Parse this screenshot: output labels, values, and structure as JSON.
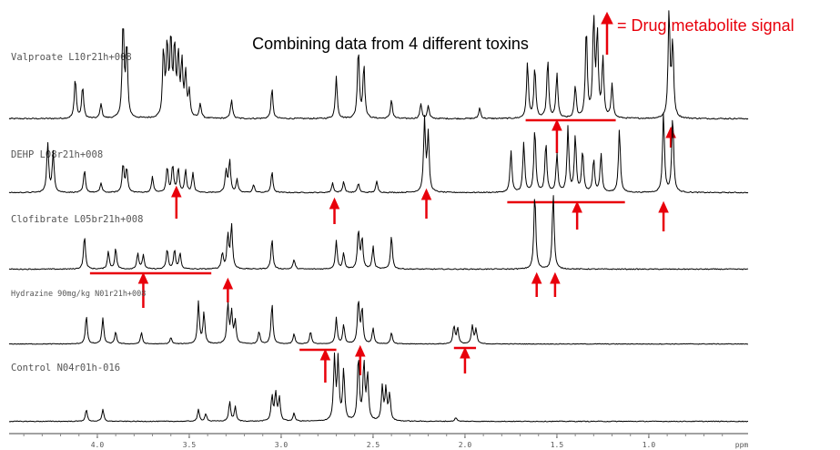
{
  "chart_data": {
    "type": "line",
    "title": "Combining data from 4 different toxins",
    "legend": {
      "symbol": "red-up-arrow-icon",
      "text": "= Drug metabolite signal",
      "placement": "top-right"
    },
    "x": {
      "unit_label": "ppm",
      "reversed": true,
      "range": [
        4.48,
        0.46
      ],
      "ticks": [
        {
          "value": 4.0,
          "label": "4.0"
        },
        {
          "value": 3.5,
          "label": "3.5"
        },
        {
          "value": 3.0,
          "label": "3.0"
        },
        {
          "value": 2.5,
          "label": "2.5"
        },
        {
          "value": 2.0,
          "label": "2.0"
        },
        {
          "value": 1.5,
          "label": "1.5"
        },
        {
          "value": 1.0,
          "label": "1.0"
        }
      ]
    },
    "colors": {
      "marker": "#e8000b",
      "trace": "#000000"
    },
    "series": [
      {
        "name": "Valproate L10r21h+008",
        "peaks": [
          [
            4.12,
            0.38
          ],
          [
            4.08,
            0.3
          ],
          [
            3.98,
            0.14
          ],
          [
            3.86,
            0.9
          ],
          [
            3.84,
            0.68
          ],
          [
            3.64,
            0.62
          ],
          [
            3.62,
            0.66
          ],
          [
            3.6,
            0.72
          ],
          [
            3.58,
            0.64
          ],
          [
            3.56,
            0.56
          ],
          [
            3.54,
            0.5
          ],
          [
            3.52,
            0.4
          ],
          [
            3.5,
            0.24
          ],
          [
            3.44,
            0.14
          ],
          [
            3.27,
            0.18
          ],
          [
            3.05,
            0.28
          ],
          [
            2.7,
            0.4
          ],
          [
            2.58,
            0.65
          ],
          [
            2.55,
            0.5
          ],
          [
            2.4,
            0.18
          ],
          [
            2.24,
            0.14
          ],
          [
            2.2,
            0.12
          ],
          [
            1.92,
            0.1
          ],
          [
            1.66,
            0.52
          ],
          [
            1.62,
            0.48
          ],
          [
            1.55,
            0.55
          ],
          [
            1.5,
            0.42
          ],
          [
            1.4,
            0.3
          ],
          [
            1.34,
            0.85
          ],
          [
            1.3,
            0.92
          ],
          [
            1.28,
            0.78
          ],
          [
            1.25,
            0.55
          ],
          [
            1.2,
            0.32
          ],
          [
            0.89,
            1.0
          ],
          [
            0.87,
            0.7
          ]
        ],
        "markers": [
          {
            "x": 1.5,
            "span": [
              1.67,
              1.18
            ]
          },
          {
            "x": 0.88
          }
        ]
      },
      {
        "name": "DEHP L08r21h+008",
        "peaks": [
          [
            4.27,
            0.62
          ],
          [
            4.24,
            0.5
          ],
          [
            4.07,
            0.28
          ],
          [
            3.98,
            0.12
          ],
          [
            3.86,
            0.36
          ],
          [
            3.84,
            0.3
          ],
          [
            3.7,
            0.2
          ],
          [
            3.62,
            0.32
          ],
          [
            3.59,
            0.34
          ],
          [
            3.56,
            0.3
          ],
          [
            3.52,
            0.28
          ],
          [
            3.48,
            0.24
          ],
          [
            3.3,
            0.28
          ],
          [
            3.28,
            0.4
          ],
          [
            3.24,
            0.16
          ],
          [
            3.15,
            0.1
          ],
          [
            3.05,
            0.26
          ],
          [
            2.72,
            0.12
          ],
          [
            2.66,
            0.14
          ],
          [
            2.58,
            0.12
          ],
          [
            2.48,
            0.14
          ],
          [
            2.22,
            0.9
          ],
          [
            2.2,
            0.72
          ],
          [
            1.75,
            0.52
          ],
          [
            1.68,
            0.62
          ],
          [
            1.62,
            0.8
          ],
          [
            1.56,
            0.62
          ],
          [
            1.5,
            0.48
          ],
          [
            1.44,
            0.82
          ],
          [
            1.4,
            0.7
          ],
          [
            1.36,
            0.52
          ],
          [
            1.3,
            0.42
          ],
          [
            1.26,
            0.48
          ],
          [
            1.16,
            0.8
          ],
          [
            0.92,
            1.0
          ],
          [
            0.87,
            0.96
          ]
        ],
        "markers": [
          {
            "x": 3.57
          },
          {
            "x": 2.71
          },
          {
            "x": 2.21
          },
          {
            "x": 1.39,
            "span": [
              1.77,
              1.13
            ]
          },
          {
            "x": 0.92
          }
        ]
      },
      {
        "name": "Clofibrate L05br21h+008",
        "peaks": [
          [
            4.07,
            0.42
          ],
          [
            3.94,
            0.22
          ],
          [
            3.9,
            0.26
          ],
          [
            3.78,
            0.2
          ],
          [
            3.75,
            0.18
          ],
          [
            3.62,
            0.25
          ],
          [
            3.58,
            0.24
          ],
          [
            3.55,
            0.2
          ],
          [
            3.32,
            0.2
          ],
          [
            3.29,
            0.42
          ],
          [
            3.27,
            0.55
          ],
          [
            3.05,
            0.38
          ],
          [
            2.93,
            0.12
          ],
          [
            2.7,
            0.36
          ],
          [
            2.66,
            0.2
          ],
          [
            2.58,
            0.48
          ],
          [
            2.56,
            0.38
          ],
          [
            2.5,
            0.28
          ],
          [
            2.4,
            0.42
          ],
          [
            1.62,
            0.95
          ],
          [
            1.52,
            0.95
          ]
        ],
        "markers": [
          {
            "x": 3.75,
            "span": [
              4.04,
              3.38
            ]
          },
          {
            "x": 3.29
          },
          {
            "x": 1.61
          },
          {
            "x": 1.51
          }
        ]
      },
      {
        "name": "Hydrazine 90mg/kg N01r21h+008",
        "peaks": [
          [
            4.06,
            0.5
          ],
          [
            3.97,
            0.46
          ],
          [
            3.9,
            0.22
          ],
          [
            3.76,
            0.2
          ],
          [
            3.6,
            0.12
          ],
          [
            3.45,
            0.75
          ],
          [
            3.42,
            0.55
          ],
          [
            3.29,
            0.7
          ],
          [
            3.27,
            0.55
          ],
          [
            3.25,
            0.4
          ],
          [
            3.12,
            0.22
          ],
          [
            3.05,
            0.72
          ],
          [
            2.93,
            0.18
          ],
          [
            2.84,
            0.22
          ],
          [
            2.7,
            0.46
          ],
          [
            2.66,
            0.34
          ],
          [
            2.58,
            0.78
          ],
          [
            2.56,
            0.62
          ],
          [
            2.5,
            0.28
          ],
          [
            2.4,
            0.2
          ],
          [
            2.06,
            0.32
          ],
          [
            2.04,
            0.28
          ],
          [
            1.96,
            0.32
          ],
          [
            1.94,
            0.26
          ]
        ],
        "markers": [
          {
            "x": 2.76,
            "span": [
              2.9,
              2.7
            ]
          },
          {
            "x": 2.57
          },
          {
            "x": 2.0,
            "span": [
              2.06,
              1.94
            ]
          }
        ]
      },
      {
        "name": "Control N04r01h-016",
        "peaks": [
          [
            4.06,
            0.18
          ],
          [
            3.97,
            0.18
          ],
          [
            3.45,
            0.18
          ],
          [
            3.41,
            0.12
          ],
          [
            3.28,
            0.3
          ],
          [
            3.25,
            0.22
          ],
          [
            3.05,
            0.38
          ],
          [
            3.03,
            0.42
          ],
          [
            3.01,
            0.36
          ],
          [
            2.93,
            0.12
          ],
          [
            2.71,
            0.98
          ],
          [
            2.69,
            0.92
          ],
          [
            2.66,
            0.78
          ],
          [
            2.58,
            0.98
          ],
          [
            2.55,
            0.88
          ],
          [
            2.53,
            0.7
          ],
          [
            2.45,
            0.52
          ],
          [
            2.43,
            0.48
          ],
          [
            2.41,
            0.4
          ],
          [
            2.05,
            0.06
          ]
        ],
        "markers": []
      }
    ]
  }
}
